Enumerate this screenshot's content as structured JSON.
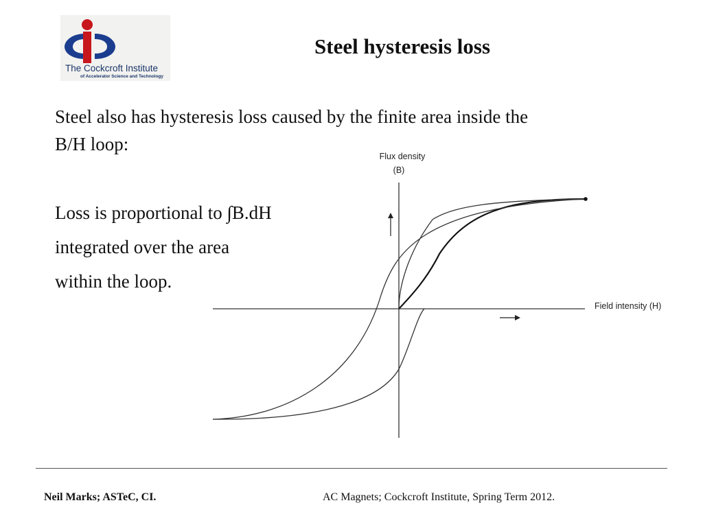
{
  "logo": {
    "name": "The Cockcroft Institute",
    "subtitle": "of Accelerator Science and Technology",
    "colors": {
      "blue": "#1b3d8f",
      "red": "#c8161d"
    }
  },
  "slide": {
    "title": "Steel hysteresis loss",
    "paragraph_1_line_1": "Steel also has hysteresis loss caused by the finite area inside the",
    "paragraph_1_line_2": "B/H loop:",
    "paragraph_2_line_1": "Loss is proportional to ∫B.dH",
    "paragraph_2_line_2": "integrated over the area",
    "paragraph_2_line_3": "within the loop."
  },
  "diagram": {
    "y_axis_label_line_1": "Flux density",
    "y_axis_label_line_2": "(B)",
    "x_axis_label": "Field intensity (H)"
  },
  "footer": {
    "author": "Neil Marks; ASTeC, CI.",
    "course": "AC Magnets; Cockcroft Institute, Spring Term 2012."
  }
}
